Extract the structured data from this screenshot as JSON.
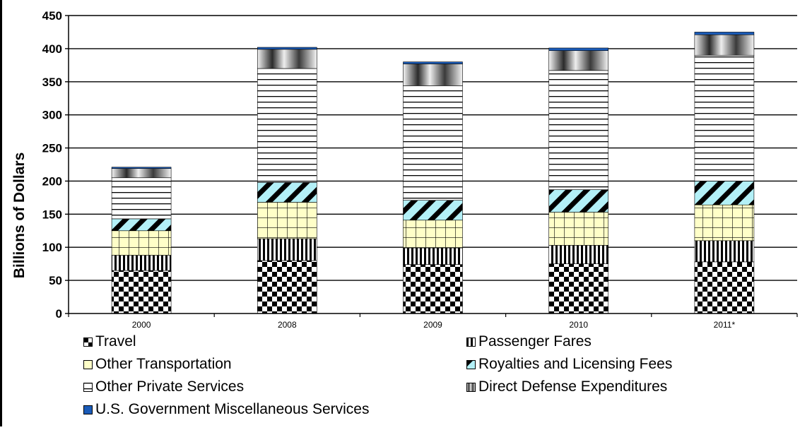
{
  "chart_data": {
    "type": "bar",
    "stacked": true,
    "ylabel": "Billions of Dollars",
    "ylim": [
      0,
      450
    ],
    "yticks": [
      0,
      50,
      100,
      150,
      200,
      250,
      300,
      350,
      400,
      450
    ],
    "categories": [
      "2000",
      "2008",
      "2009",
      "2010",
      "2011*"
    ],
    "grid": "horizontal",
    "legend_position": "bottom",
    "series": [
      {
        "name": "Travel",
        "values": [
          65,
          80,
          74,
          75,
          78
        ],
        "color": "#000000",
        "pattern": "checker"
      },
      {
        "name": "Passenger Fares",
        "values": [
          23,
          33,
          25,
          28,
          32
        ],
        "color": "#000000",
        "pattern": "vertical-lines"
      },
      {
        "name": "Other Transportation",
        "values": [
          37,
          55,
          42,
          50,
          54
        ],
        "color": "#ffffc8",
        "pattern": "grid"
      },
      {
        "name": "Royalties and Licensing Fees",
        "values": [
          18,
          30,
          30,
          34,
          36
        ],
        "color": "#b3f0f7",
        "pattern": "diagonal"
      },
      {
        "name": "Other Private Services",
        "values": [
          62,
          172,
          173,
          180,
          190
        ],
        "color": "#ffffff",
        "pattern": "horizontal-lines"
      },
      {
        "name": "Direct Defense Expenditures",
        "values": [
          14,
          29,
          33,
          30,
          31
        ],
        "color": "#9e9e9e",
        "pattern": "gradient"
      },
      {
        "name": "U.S. Government Miscellaneous Services",
        "values": [
          2,
          3,
          3,
          4,
          4
        ],
        "color": "#1a5bb8",
        "pattern": "solid"
      }
    ]
  }
}
